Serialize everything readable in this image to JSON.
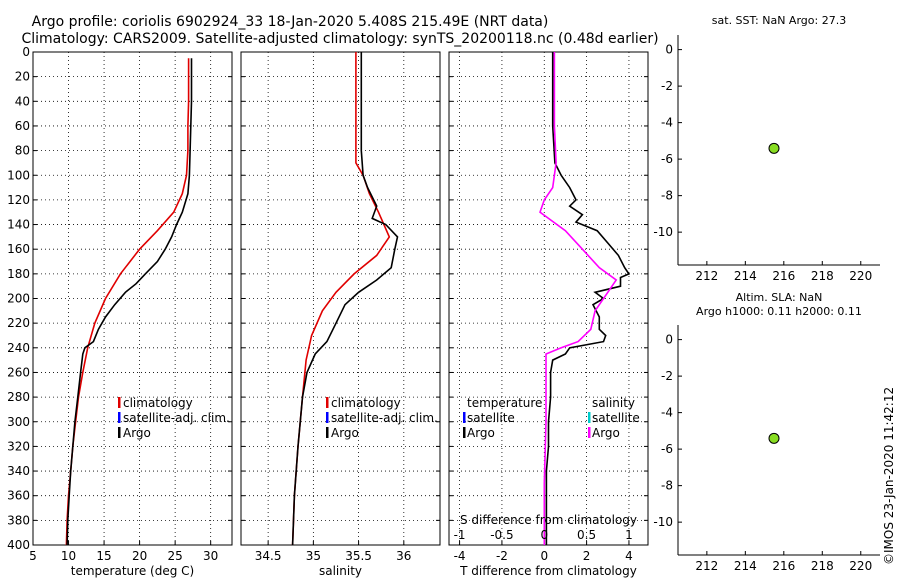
{
  "title": {
    "line1": "Argo profile: coriolis 6902924_33 18-Jan-2020 5.408S 215.49E (NRT data)",
    "line2": "Climatology: CARS2009. Satellite-adjusted climatology: synTS_20200118.nc (0.48d earlier)"
  },
  "footer": "©IMOS 23-Jan-2020 11:42:12",
  "colors": {
    "climatology": "#e00000",
    "satellite": "#0000ff",
    "argo": "#000000",
    "s_diff": "#ff00ff",
    "s_sat": "#00cccc",
    "marker": "#88dd22"
  },
  "chart_data": [
    {
      "type": "line",
      "id": "temperature",
      "xlabel": "temperature (deg C)",
      "xlim": [
        5,
        33
      ],
      "xticks": [
        5,
        10,
        15,
        20,
        25,
        30
      ],
      "ylim": [
        400,
        0
      ],
      "yticks": [
        0,
        20,
        40,
        60,
        80,
        100,
        120,
        140,
        160,
        180,
        200,
        220,
        240,
        260,
        280,
        300,
        320,
        340,
        360,
        380,
        400
      ],
      "grid": true,
      "legend": [
        "climatology",
        "satellite-adj. clim.",
        "Argo"
      ],
      "series": [
        {
          "name": "climatology",
          "color": "#e00000",
          "points": [
            [
              26.9,
              5
            ],
            [
              26.9,
              20
            ],
            [
              26.9,
              40
            ],
            [
              26.8,
              60
            ],
            [
              26.8,
              80
            ],
            [
              26.6,
              100
            ],
            [
              26.0,
              115
            ],
            [
              24.8,
              130
            ],
            [
              22.5,
              145
            ],
            [
              20.0,
              160
            ],
            [
              17.3,
              180
            ],
            [
              15.2,
              200
            ],
            [
              13.7,
              220
            ],
            [
              12.7,
              240
            ],
            [
              12.0,
              260
            ],
            [
              11.4,
              280
            ],
            [
              11.0,
              300
            ],
            [
              10.6,
              320
            ],
            [
              10.3,
              340
            ],
            [
              10.0,
              360
            ],
            [
              9.8,
              380
            ],
            [
              9.7,
              400
            ]
          ]
        },
        {
          "name": "Argo",
          "color": "#000000",
          "points": [
            [
              27.3,
              5
            ],
            [
              27.3,
              40
            ],
            [
              27.1,
              80
            ],
            [
              27.0,
              100
            ],
            [
              26.8,
              115
            ],
            [
              26.0,
              130
            ],
            [
              25.2,
              140
            ],
            [
              24.5,
              150
            ],
            [
              23.6,
              160
            ],
            [
              22.5,
              170
            ],
            [
              20.8,
              180
            ],
            [
              19.5,
              188
            ],
            [
              18.0,
              195
            ],
            [
              16.5,
              205
            ],
            [
              15.2,
              215
            ],
            [
              14.2,
              225
            ],
            [
              13.5,
              235
            ],
            [
              12.3,
              240
            ],
            [
              12.0,
              245
            ],
            [
              11.7,
              260
            ],
            [
              11.3,
              280
            ],
            [
              10.9,
              300
            ],
            [
              10.6,
              320
            ],
            [
              10.3,
              340
            ],
            [
              10.1,
              360
            ],
            [
              9.9,
              380
            ],
            [
              9.8,
              400
            ]
          ]
        }
      ]
    },
    {
      "type": "line",
      "id": "salinity",
      "xlabel": "salinity",
      "xlim": [
        34.2,
        36.4
      ],
      "xticks": [
        34.5,
        35,
        35.5,
        36
      ],
      "ylim": [
        400,
        0
      ],
      "grid": true,
      "legend": [
        "climatology",
        "satellite-adj. clim.",
        "Argo"
      ],
      "series": [
        {
          "name": "climatology",
          "color": "#e00000",
          "points": [
            [
              35.47,
              0
            ],
            [
              35.47,
              60
            ],
            [
              35.47,
              90
            ],
            [
              35.55,
              100
            ],
            [
              35.62,
              115
            ],
            [
              35.72,
              130
            ],
            [
              35.84,
              150
            ],
            [
              35.7,
              165
            ],
            [
              35.45,
              180
            ],
            [
              35.25,
              195
            ],
            [
              35.1,
              210
            ],
            [
              34.98,
              230
            ],
            [
              34.92,
              250
            ],
            [
              34.88,
              280
            ],
            [
              34.83,
              320
            ],
            [
              34.79,
              360
            ],
            [
              34.77,
              400
            ]
          ]
        },
        {
          "name": "Argo",
          "color": "#000000",
          "points": [
            [
              35.53,
              0
            ],
            [
              35.53,
              80
            ],
            [
              35.55,
              100
            ],
            [
              35.6,
              110
            ],
            [
              35.7,
              125
            ],
            [
              35.65,
              135
            ],
            [
              35.8,
              140
            ],
            [
              35.93,
              150
            ],
            [
              35.9,
              160
            ],
            [
              35.86,
              175
            ],
            [
              35.7,
              185
            ],
            [
              35.5,
              195
            ],
            [
              35.35,
              205
            ],
            [
              35.25,
              220
            ],
            [
              35.15,
              235
            ],
            [
              35.02,
              245
            ],
            [
              34.93,
              260
            ],
            [
              34.88,
              280
            ],
            [
              34.83,
              320
            ],
            [
              34.79,
              360
            ],
            [
              34.77,
              400
            ]
          ]
        }
      ]
    },
    {
      "type": "line",
      "id": "difference",
      "xlabel": "T difference from climatology",
      "xlabel_top": "S difference from climatology",
      "xlim": [
        -4.5,
        4.9
      ],
      "xticks": [
        -4,
        -2,
        0,
        2,
        4
      ],
      "xticks_top": [
        "-1",
        "-0.5",
        "0",
        "0.5",
        "1"
      ],
      "ylim": [
        400,
        0
      ],
      "grid": true,
      "legend_temperature": [
        "temperature",
        "satellite",
        "Argo"
      ],
      "legend_salinity": [
        "salinity",
        "satellite",
        "Argo"
      ],
      "series": [
        {
          "name": "T difference",
          "color": "#000000",
          "points": [
            [
              0.4,
              0
            ],
            [
              0.4,
              60
            ],
            [
              0.5,
              90
            ],
            [
              0.8,
              100
            ],
            [
              1.2,
              110
            ],
            [
              1.5,
              120
            ],
            [
              1.2,
              125
            ],
            [
              1.8,
              132
            ],
            [
              1.5,
              138
            ],
            [
              2.5,
              145
            ],
            [
              3.0,
              155
            ],
            [
              3.5,
              165
            ],
            [
              3.8,
              175
            ],
            [
              4.0,
              180
            ],
            [
              3.6,
              183
            ],
            [
              3.6,
              190
            ],
            [
              2.4,
              195
            ],
            [
              2.8,
              200
            ],
            [
              2.3,
              205
            ],
            [
              2.6,
              215
            ],
            [
              2.6,
              225
            ],
            [
              2.9,
              230
            ],
            [
              2.8,
              235
            ],
            [
              1.2,
              240
            ],
            [
              1.0,
              245
            ],
            [
              0.4,
              250
            ],
            [
              0.3,
              260
            ],
            [
              0.3,
              280
            ],
            [
              0.2,
              300
            ],
            [
              0.2,
              320
            ],
            [
              0.1,
              340
            ],
            [
              0.1,
              360
            ],
            [
              0.1,
              380
            ],
            [
              0.1,
              400
            ]
          ]
        },
        {
          "name": "S difference",
          "color": "#ff00ff",
          "points": [
            [
              0.12,
              0
            ],
            [
              0.12,
              60
            ],
            [
              0.14,
              90
            ],
            [
              0.1,
              110
            ],
            [
              0.0,
              120
            ],
            [
              -0.05,
              130
            ],
            [
              0.05,
              135
            ],
            [
              0.25,
              145
            ],
            [
              0.45,
              160
            ],
            [
              0.65,
              175
            ],
            [
              0.85,
              185
            ],
            [
              0.75,
              195
            ],
            [
              0.6,
              210
            ],
            [
              0.55,
              225
            ],
            [
              0.4,
              235
            ],
            [
              0.2,
              240
            ],
            [
              0.02,
              245
            ],
            [
              0.02,
              260
            ],
            [
              0.02,
              300
            ],
            [
              0.0,
              350
            ],
            [
              0.0,
              400
            ]
          ]
        }
      ]
    },
    {
      "type": "scatter",
      "id": "sst_map",
      "title": "sat. SST: NaN Argo: 27.3",
      "xlim": [
        210.5,
        221
      ],
      "xticks": [
        212,
        214,
        216,
        218,
        220
      ],
      "ylim": [
        -11.8,
        0.8
      ],
      "yticks": [
        0,
        -2,
        -4,
        -6,
        -8,
        -10
      ],
      "points": [
        [
          215.49,
          -5.408
        ]
      ]
    },
    {
      "type": "scatter",
      "id": "sla_map",
      "title": "Altim. SLA: NaN",
      "subtitle": "Argo h1000: 0.11 h2000: 0.11",
      "xlim": [
        210.5,
        221
      ],
      "xticks": [
        212,
        214,
        216,
        218,
        220
      ],
      "ylim": [
        -11.8,
        0.8
      ],
      "yticks": [
        0,
        -2,
        -4,
        -6,
        -8,
        -10
      ],
      "points": [
        [
          215.49,
          -5.408
        ]
      ]
    }
  ]
}
